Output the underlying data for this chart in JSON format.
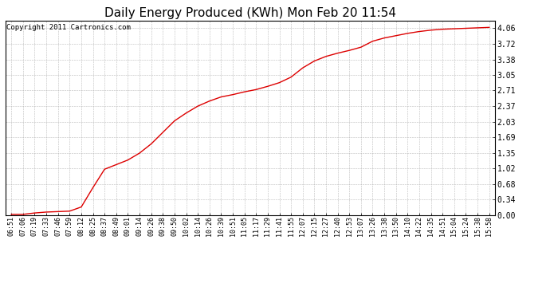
{
  "title": "Daily Energy Produced (KWh) Mon Feb 20 11:54",
  "copyright_text": "Copyright 2011 Cartronics.com",
  "line_color": "#dd0000",
  "background_color": "#ffffff",
  "plot_bg_color": "#ffffff",
  "grid_color": "#bbbbbb",
  "title_fontsize": 11,
  "tick_fontsize": 6,
  "copyright_fontsize": 6.5,
  "yticks": [
    0.0,
    0.34,
    0.68,
    1.02,
    1.35,
    1.69,
    2.03,
    2.37,
    2.71,
    3.05,
    3.38,
    3.72,
    4.06
  ],
  "ylim": [
    0.0,
    4.22
  ],
  "x_labels": [
    "06:51",
    "07:06",
    "07:19",
    "07:33",
    "07:46",
    "07:59",
    "08:12",
    "08:25",
    "08:37",
    "08:49",
    "09:01",
    "09:14",
    "09:26",
    "09:38",
    "09:50",
    "10:02",
    "10:14",
    "10:26",
    "10:39",
    "10:51",
    "11:05",
    "11:17",
    "11:29",
    "11:41",
    "11:55",
    "12:07",
    "12:15",
    "12:27",
    "12:40",
    "12:53",
    "13:07",
    "13:26",
    "13:38",
    "13:50",
    "14:10",
    "14:22",
    "14:35",
    "14:51",
    "15:04",
    "15:24",
    "15:38",
    "15:58"
  ],
  "y_values": [
    0.02,
    0.02,
    0.05,
    0.07,
    0.08,
    0.09,
    0.18,
    0.6,
    1.0,
    1.1,
    1.2,
    1.35,
    1.55,
    1.8,
    2.05,
    2.22,
    2.37,
    2.48,
    2.57,
    2.62,
    2.68,
    2.73,
    2.8,
    2.88,
    3.0,
    3.2,
    3.35,
    3.45,
    3.52,
    3.58,
    3.65,
    3.78,
    3.85,
    3.9,
    3.95,
    3.99,
    4.02,
    4.04,
    4.05,
    4.06,
    4.07,
    4.08
  ]
}
